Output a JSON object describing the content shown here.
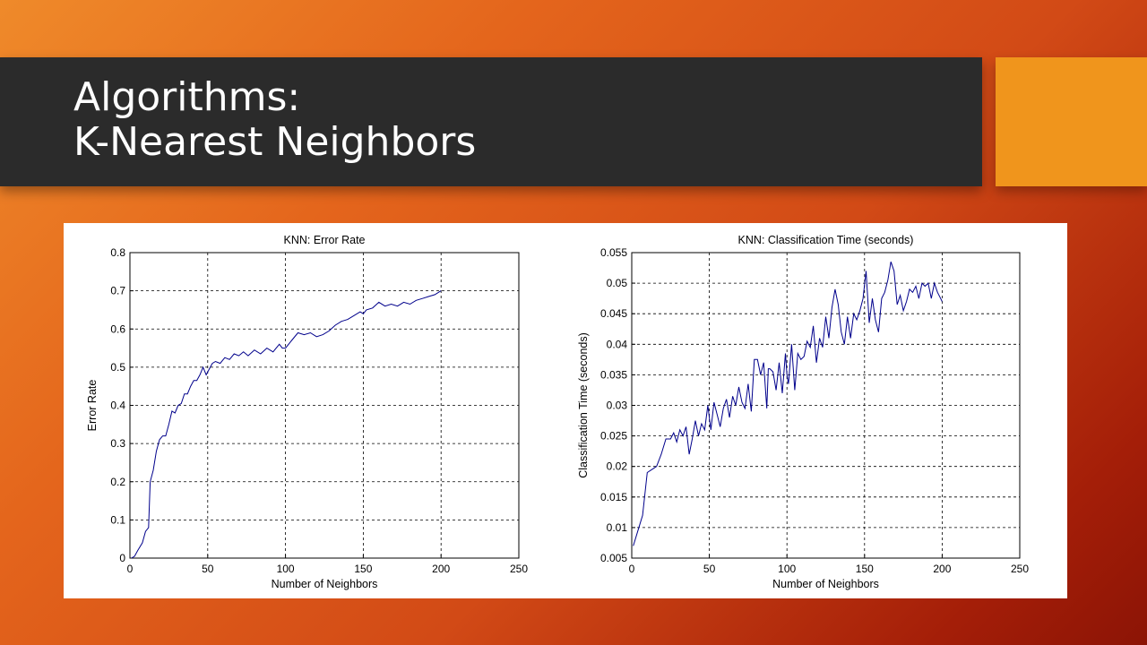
{
  "slide": {
    "title_line1": "Algorithms:",
    "title_line2": "K-Nearest Neighbors",
    "accent_color": "#f0951c",
    "title_bar_color": "#2b2b2b"
  },
  "chart_data": [
    {
      "type": "line",
      "title": "KNN: Error Rate",
      "xlabel": "Number of Neighbors",
      "ylabel": "Error Rate",
      "xlim": [
        0,
        250
      ],
      "ylim": [
        0,
        0.8
      ],
      "xticks": [
        "0",
        "50",
        "100",
        "150",
        "200",
        "250"
      ],
      "yticks": [
        "0",
        "0.1",
        "0.2",
        "0.3",
        "0.4",
        "0.5",
        "0.6",
        "0.7",
        "0.8"
      ],
      "grid": true,
      "line_color": "#00008b",
      "series": [
        {
          "x": [
            1,
            3,
            5,
            8,
            10,
            12,
            13,
            15,
            17,
            19,
            21,
            23,
            25,
            27,
            29,
            31,
            33,
            35,
            37,
            39,
            41,
            43,
            45,
            47,
            49,
            51,
            53,
            55,
            58,
            61,
            64,
            67,
            70,
            73,
            76,
            80,
            84,
            88,
            92,
            96,
            98,
            100,
            104,
            108,
            112,
            116,
            120,
            124,
            128,
            132,
            136,
            140,
            144,
            148,
            150,
            152,
            156,
            160,
            164,
            168,
            172,
            176,
            180,
            184,
            188,
            192,
            196,
            200
          ],
          "y": [
            0.0,
            0.005,
            0.02,
            0.04,
            0.07,
            0.08,
            0.2,
            0.23,
            0.28,
            0.31,
            0.32,
            0.32,
            0.35,
            0.385,
            0.38,
            0.4,
            0.405,
            0.43,
            0.43,
            0.45,
            0.465,
            0.465,
            0.48,
            0.5,
            0.48,
            0.495,
            0.51,
            0.515,
            0.51,
            0.525,
            0.52,
            0.535,
            0.53,
            0.54,
            0.53,
            0.545,
            0.535,
            0.55,
            0.54,
            0.56,
            0.55,
            0.55,
            0.57,
            0.59,
            0.585,
            0.59,
            0.58,
            0.585,
            0.595,
            0.61,
            0.62,
            0.625,
            0.635,
            0.645,
            0.64,
            0.65,
            0.655,
            0.67,
            0.66,
            0.665,
            0.66,
            0.67,
            0.665,
            0.675,
            0.68,
            0.685,
            0.69,
            0.7
          ]
        }
      ]
    },
    {
      "type": "line",
      "title": "KNN: Classification Time (seconds)",
      "xlabel": "Number of Neighbors",
      "ylabel": "Classification Time (seconds)",
      "xlim": [
        0,
        250
      ],
      "ylim": [
        0.005,
        0.055
      ],
      "xticks": [
        "0",
        "50",
        "100",
        "150",
        "200",
        "250"
      ],
      "yticks": [
        "0.005",
        "0.01",
        "0.015",
        "0.02",
        "0.025",
        "0.03",
        "0.035",
        "0.04",
        "0.045",
        "0.05",
        "0.055"
      ],
      "grid": true,
      "line_color": "#00008b",
      "series": [
        {
          "x": [
            1,
            4,
            7,
            10,
            13,
            16,
            19,
            22,
            25,
            27,
            29,
            31,
            33,
            35,
            37,
            39,
            41,
            43,
            45,
            47,
            49,
            51,
            53,
            55,
            57,
            59,
            61,
            63,
            65,
            67,
            69,
            71,
            73,
            75,
            77,
            79,
            81,
            83,
            85,
            87,
            88,
            89,
            91,
            93,
            95,
            97,
            99,
            100,
            101,
            103,
            105,
            107,
            109,
            111,
            113,
            115,
            117,
            119,
            121,
            123,
            125,
            127,
            129,
            131,
            133,
            135,
            137,
            139,
            141,
            143,
            145,
            147,
            149,
            151,
            153,
            155,
            157,
            159,
            161,
            163,
            165,
            167,
            169,
            171,
            173,
            175,
            177,
            179,
            181,
            183,
            185,
            187,
            189,
            191,
            193,
            195,
            197,
            199,
            200
          ],
          "y": [
            0.007,
            0.0095,
            0.012,
            0.019,
            0.0195,
            0.02,
            0.022,
            0.0245,
            0.0245,
            0.0255,
            0.024,
            0.026,
            0.025,
            0.0265,
            0.022,
            0.0245,
            0.0275,
            0.025,
            0.027,
            0.026,
            0.03,
            0.026,
            0.0305,
            0.0285,
            0.0265,
            0.0295,
            0.031,
            0.028,
            0.0315,
            0.03,
            0.033,
            0.0305,
            0.0295,
            0.0335,
            0.029,
            0.0375,
            0.0375,
            0.035,
            0.037,
            0.0295,
            0.036,
            0.036,
            0.0355,
            0.0325,
            0.037,
            0.032,
            0.0385,
            0.035,
            0.0335,
            0.04,
            0.0325,
            0.0385,
            0.0375,
            0.038,
            0.0405,
            0.0395,
            0.043,
            0.037,
            0.041,
            0.0395,
            0.0445,
            0.041,
            0.046,
            0.049,
            0.0465,
            0.042,
            0.04,
            0.0445,
            0.041,
            0.045,
            0.044,
            0.0455,
            0.0475,
            0.052,
            0.0435,
            0.0475,
            0.044,
            0.042,
            0.0475,
            0.0485,
            0.0505,
            0.0535,
            0.052,
            0.0465,
            0.048,
            0.0455,
            0.047,
            0.049,
            0.0485,
            0.0495,
            0.0475,
            0.05,
            0.0495,
            0.05,
            0.0475,
            0.05,
            0.0485,
            0.0475,
            0.047
          ]
        }
      ]
    }
  ]
}
